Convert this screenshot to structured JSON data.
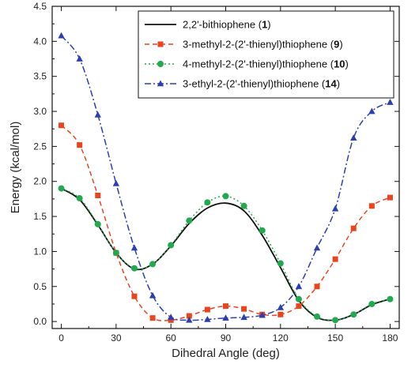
{
  "chart_data": {
    "type": "line",
    "title": "",
    "xlabel": "Dihedral Angle (deg)",
    "ylabel": "Energy (kcal/mol)",
    "xlim": [
      -5,
      185
    ],
    "ylim": [
      -0.1,
      4.5
    ],
    "xticks": [
      0,
      30,
      60,
      90,
      120,
      150,
      180
    ],
    "xtick_labels": [
      "0",
      "30",
      "60",
      "90",
      "120",
      "150",
      "180"
    ],
    "yticks": [
      0.0,
      0.5,
      1.0,
      1.5,
      2.0,
      2.5,
      3.0,
      3.5,
      4.0,
      4.5
    ],
    "ytick_labels": [
      "0.0",
      "0.5",
      "1.0",
      "1.5",
      "2.0",
      "2.5",
      "3.0",
      "3.5",
      "4.0",
      "4.5"
    ],
    "grid": false,
    "legend_position": "top-right",
    "x": [
      0,
      10,
      20,
      30,
      40,
      50,
      60,
      70,
      80,
      90,
      100,
      110,
      120,
      130,
      140,
      150,
      160,
      170,
      180
    ],
    "series": [
      {
        "name": "2,2'-bithiophene",
        "num": "1",
        "color": "#111111",
        "dash": "",
        "marker": "none",
        "values": [
          1.9,
          1.74,
          1.38,
          0.98,
          0.75,
          0.82,
          1.08,
          1.4,
          1.62,
          1.69,
          1.58,
          1.23,
          0.77,
          0.3,
          0.06,
          0.02,
          0.1,
          0.24,
          0.32
        ]
      },
      {
        "name": "3-methyl-2-(2'-thienyl)thiophene",
        "num": "9",
        "color": "#e8451e",
        "dash": "6,4",
        "marker": "square",
        "values": [
          2.8,
          2.52,
          1.8,
          0.98,
          0.36,
          0.05,
          0.02,
          0.08,
          0.17,
          0.22,
          0.18,
          0.1,
          0.1,
          0.22,
          0.5,
          0.89,
          1.33,
          1.65,
          1.77
        ]
      },
      {
        "name": "4-methyl-2-(2'-thienyl)thiophene",
        "num": "10",
        "color": "#22a84e",
        "dash": "2,3",
        "marker": "circle",
        "values": [
          1.9,
          1.76,
          1.39,
          0.98,
          0.76,
          0.82,
          1.09,
          1.44,
          1.7,
          1.79,
          1.65,
          1.3,
          0.83,
          0.32,
          0.07,
          0.02,
          0.1,
          0.25,
          0.32
        ]
      },
      {
        "name": "3-ethyl-2-(2'-thienyl)thiophene",
        "num": "14",
        "color": "#2b3fb0",
        "dash": "8,3,2,3",
        "marker": "triangle",
        "values": [
          4.08,
          3.75,
          2.95,
          1.97,
          1.05,
          0.37,
          0.06,
          0.02,
          0.03,
          0.05,
          0.06,
          0.09,
          0.2,
          0.5,
          1.05,
          1.61,
          2.62,
          3.0,
          3.13
        ]
      }
    ]
  }
}
